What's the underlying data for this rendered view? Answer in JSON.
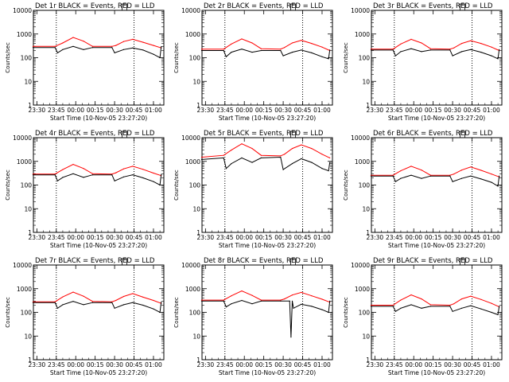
{
  "colors": {
    "events": "#000000",
    "lld": "#ff0000",
    "background": "#ffffff",
    "axis": "#000000"
  },
  "chart_data": [
    {
      "type": "line",
      "title": "Det 1r BLACK = Events, RED = LLD",
      "xlabel": "Start Time (10-Nov-05 23:27:20)",
      "ylabel": "Counts/sec",
      "yscale": "log",
      "ylim": [
        1,
        10000
      ],
      "xticks": [
        "23:30",
        "23:45",
        "00:00",
        "00:15",
        "00:30",
        "00:45",
        "01:00"
      ],
      "xlim": [
        "23:27:20",
        "01:08:00"
      ],
      "vlines": [
        "23:45",
        "00:45"
      ],
      "series": [
        {
          "name": "LLD",
          "color": "#ff0000",
          "x": [
            "23:27",
            "23:44",
            "23:50",
            "23:58",
            "00:06",
            "00:13",
            "00:28",
            "00:31",
            "00:37",
            "00:44",
            "00:52",
            "01:00",
            "01:06"
          ],
          "y": [
            300,
            300,
            420,
            720,
            500,
            300,
            300,
            330,
            480,
            600,
            450,
            330,
            260
          ]
        },
        {
          "name": "Events",
          "color": "#000000",
          "x": [
            "23:27",
            "23:44",
            "23:46",
            "23:50",
            "23:58",
            "00:06",
            "00:13",
            "00:28",
            "00:30",
            "00:37",
            "00:44",
            "00:52",
            "01:00",
            "01:05",
            "01:06"
          ],
          "y": [
            270,
            270,
            160,
            220,
            300,
            220,
            270,
            270,
            160,
            220,
            260,
            210,
            140,
            100,
            290
          ]
        }
      ]
    },
    {
      "type": "line",
      "title": "Det 2r BLACK = Events, RED = LLD",
      "xlabel": "Start Time (10-Nov-05 23:27:20)",
      "ylabel": "Counts/sec",
      "yscale": "log",
      "ylim": [
        1,
        10000
      ],
      "xticks": [
        "23:30",
        "23:45",
        "00:00",
        "00:15",
        "00:30",
        "00:45",
        "01:00"
      ],
      "xlim": [
        "23:27:20",
        "01:08:00"
      ],
      "vlines": [
        "23:45",
        "00:45"
      ],
      "series": [
        {
          "name": "LLD",
          "color": "#ff0000",
          "x": [
            "23:27",
            "23:44",
            "23:50",
            "23:58",
            "00:06",
            "00:13",
            "00:28",
            "00:31",
            "00:37",
            "00:44",
            "00:52",
            "01:00",
            "01:06"
          ],
          "y": [
            230,
            230,
            380,
            620,
            420,
            240,
            230,
            270,
            420,
            540,
            400,
            280,
            200
          ]
        },
        {
          "name": "Events",
          "color": "#000000",
          "x": [
            "23:27",
            "23:44",
            "23:46",
            "23:50",
            "23:58",
            "00:06",
            "00:13",
            "00:28",
            "00:30",
            "00:37",
            "00:44",
            "00:52",
            "01:00",
            "01:05",
            "01:06"
          ],
          "y": [
            200,
            200,
            110,
            170,
            230,
            170,
            200,
            200,
            120,
            170,
            210,
            160,
            110,
            90,
            210
          ]
        }
      ]
    },
    {
      "type": "line",
      "title": "Det 3r BLACK = Events, RED = LLD",
      "xlabel": "Start Time (10-Nov-05 23:27:20)",
      "ylabel": "Counts/sec",
      "yscale": "log",
      "ylim": [
        1,
        10000
      ],
      "xticks": [
        "23:30",
        "23:45",
        "00:00",
        "00:15",
        "00:30",
        "00:45",
        "01:00"
      ],
      "xlim": [
        "23:27:20",
        "01:08:00"
      ],
      "vlines": [
        "23:45",
        "00:45"
      ],
      "series": [
        {
          "name": "LLD",
          "color": "#ff0000",
          "x": [
            "23:27",
            "23:44",
            "23:50",
            "23:58",
            "00:06",
            "00:13",
            "00:28",
            "00:31",
            "00:37",
            "00:44",
            "00:52",
            "01:00",
            "01:06"
          ],
          "y": [
            230,
            230,
            380,
            600,
            420,
            240,
            230,
            260,
            400,
            520,
            400,
            280,
            200
          ]
        },
        {
          "name": "Events",
          "color": "#000000",
          "x": [
            "23:27",
            "23:44",
            "23:46",
            "23:50",
            "23:58",
            "00:06",
            "00:13",
            "00:28",
            "00:30",
            "00:37",
            "00:44",
            "00:52",
            "01:00",
            "01:05",
            "01:06"
          ],
          "y": [
            210,
            210,
            120,
            180,
            240,
            180,
            210,
            210,
            120,
            180,
            220,
            170,
            120,
            90,
            220
          ]
        }
      ]
    },
    {
      "type": "line",
      "title": "Det 4r BLACK = Events, RED = LLD",
      "xlabel": "Start Time (10-Nov-05 23:27:20)",
      "ylabel": "Counts/sec",
      "yscale": "log",
      "ylim": [
        1,
        10000
      ],
      "xticks": [
        "23:30",
        "23:45",
        "00:00",
        "00:15",
        "00:30",
        "00:45",
        "01:00"
      ],
      "xlim": [
        "23:27:20",
        "01:08:00"
      ],
      "vlines": [
        "23:45",
        "00:45"
      ],
      "series": [
        {
          "name": "LLD",
          "color": "#ff0000",
          "x": [
            "23:27",
            "23:44",
            "23:50",
            "23:58",
            "00:06",
            "00:13",
            "00:28",
            "00:31",
            "00:37",
            "00:44",
            "00:52",
            "01:00",
            "01:06"
          ],
          "y": [
            290,
            290,
            450,
            750,
            500,
            300,
            290,
            330,
            480,
            620,
            460,
            320,
            250
          ]
        },
        {
          "name": "Events",
          "color": "#000000",
          "x": [
            "23:27",
            "23:44",
            "23:46",
            "23:50",
            "23:58",
            "00:06",
            "00:13",
            "00:28",
            "00:30",
            "00:37",
            "00:44",
            "00:52",
            "01:00",
            "01:05",
            "01:06"
          ],
          "y": [
            270,
            270,
            150,
            210,
            300,
            210,
            270,
            270,
            150,
            220,
            270,
            200,
            140,
            100,
            280
          ]
        }
      ]
    },
    {
      "type": "line",
      "title": "Det 5r BLACK = Events, RED = LLD",
      "xlabel": "Start Time (10-Nov-05 23:27:20)",
      "ylabel": "Counts/sec",
      "yscale": "log",
      "ylim": [
        1,
        10000
      ],
      "xticks": [
        "23:30",
        "23:45",
        "00:00",
        "00:15",
        "00:30",
        "00:45",
        "01:00"
      ],
      "xlim": [
        "23:27:20",
        "01:08:00"
      ],
      "vlines": [
        "23:45",
        "00:45"
      ],
      "series": [
        {
          "name": "LLD",
          "color": "#ff0000",
          "x": [
            "23:27",
            "23:44",
            "23:50",
            "23:58",
            "00:06",
            "00:13",
            "00:28",
            "00:31",
            "00:37",
            "00:44",
            "00:52",
            "01:00",
            "01:06"
          ],
          "y": [
            1500,
            1800,
            3000,
            5500,
            3500,
            1800,
            1700,
            2000,
            3500,
            5000,
            3500,
            2000,
            1400
          ]
        },
        {
          "name": "Events",
          "color": "#000000",
          "x": [
            "23:27",
            "23:44",
            "23:46",
            "23:50",
            "23:58",
            "00:06",
            "00:13",
            "00:28",
            "00:30",
            "00:37",
            "00:44",
            "00:52",
            "01:00",
            "01:05",
            "01:06"
          ],
          "y": [
            1200,
            1400,
            500,
            800,
            1400,
            900,
            1400,
            1500,
            450,
            800,
            1300,
            900,
            500,
            400,
            900
          ]
        }
      ]
    },
    {
      "type": "line",
      "title": "Det 6r BLACK = Events, RED = LLD",
      "xlabel": "Start Time (10-Nov-05 23:27:20)",
      "ylabel": "Counts/sec",
      "yscale": "log",
      "ylim": [
        1,
        10000
      ],
      "xticks": [
        "23:30",
        "23:45",
        "00:00",
        "00:15",
        "00:30",
        "00:45",
        "01:00"
      ],
      "xlim": [
        "23:27:20",
        "01:08:00"
      ],
      "vlines": [
        "23:45",
        "00:45"
      ],
      "series": [
        {
          "name": "LLD",
          "color": "#ff0000",
          "x": [
            "23:27",
            "23:44",
            "23:50",
            "23:58",
            "00:06",
            "00:13",
            "00:28",
            "00:31",
            "00:37",
            "00:44",
            "00:52",
            "01:00",
            "01:06"
          ],
          "y": [
            260,
            260,
            400,
            620,
            430,
            260,
            260,
            290,
            430,
            580,
            420,
            290,
            220
          ]
        },
        {
          "name": "Events",
          "color": "#000000",
          "x": [
            "23:27",
            "23:44",
            "23:46",
            "23:50",
            "23:58",
            "00:06",
            "00:13",
            "00:28",
            "00:30",
            "00:37",
            "00:44",
            "00:52",
            "01:00",
            "01:05",
            "01:06"
          ],
          "y": [
            240,
            240,
            140,
            190,
            260,
            190,
            240,
            240,
            140,
            190,
            240,
            180,
            130,
            90,
            240
          ]
        }
      ]
    },
    {
      "type": "line",
      "title": "Det 7r BLACK = Events, RED = LLD",
      "xlabel": "Start Time (10-Nov-05 23:27:20)",
      "ylabel": "Counts/sec",
      "yscale": "log",
      "ylim": [
        1,
        10000
      ],
      "xticks": [
        "23:30",
        "23:45",
        "00:00",
        "00:15",
        "00:30",
        "00:45",
        "01:00"
      ],
      "xlim": [
        "23:27:20",
        "01:08:00"
      ],
      "vlines": [
        "23:45",
        "00:45"
      ],
      "series": [
        {
          "name": "LLD",
          "color": "#ff0000",
          "x": [
            "23:27",
            "23:44",
            "23:50",
            "23:58",
            "00:06",
            "00:13",
            "00:28",
            "00:31",
            "00:37",
            "00:44",
            "00:52",
            "01:00",
            "01:06"
          ],
          "y": [
            280,
            280,
            450,
            720,
            480,
            290,
            280,
            320,
            470,
            620,
            440,
            320,
            240
          ]
        },
        {
          "name": "Events",
          "color": "#000000",
          "x": [
            "23:27",
            "23:44",
            "23:46",
            "23:50",
            "23:58",
            "00:06",
            "00:13",
            "00:28",
            "00:30",
            "00:37",
            "00:44",
            "00:52",
            "01:00",
            "01:05",
            "01:06"
          ],
          "y": [
            260,
            260,
            150,
            210,
            290,
            210,
            260,
            260,
            150,
            210,
            260,
            200,
            140,
            100,
            270
          ]
        }
      ]
    },
    {
      "type": "line",
      "title": "Det 8r BLACK = Events, RED = LLD",
      "xlabel": "Start Time (10-Nov-05 23:27:20)",
      "ylabel": "Counts/sec",
      "yscale": "log",
      "ylim": [
        1,
        10000
      ],
      "xticks": [
        "23:30",
        "23:45",
        "00:00",
        "00:15",
        "00:30",
        "00:45",
        "01:00"
      ],
      "xlim": [
        "23:27:20",
        "01:08:00"
      ],
      "vlines": [
        "23:45",
        "00:45"
      ],
      "series": [
        {
          "name": "LLD",
          "color": "#ff0000",
          "x": [
            "23:27",
            "23:44",
            "23:50",
            "23:58",
            "00:06",
            "00:13",
            "00:28",
            "00:31",
            "00:37",
            "00:44",
            "00:52",
            "01:00",
            "01:06"
          ],
          "y": [
            330,
            330,
            500,
            800,
            520,
            330,
            330,
            370,
            540,
            700,
            500,
            360,
            270
          ]
        },
        {
          "name": "Events",
          "color": "#000000",
          "x": [
            "23:27",
            "23:44",
            "23:46",
            "23:50",
            "23:58",
            "00:06",
            "00:13",
            "00:28",
            "00:35",
            "00:36",
            "00:37",
            "00:38",
            "00:44",
            "00:52",
            "01:00",
            "01:05",
            "01:06"
          ],
          "y": [
            300,
            300,
            170,
            230,
            320,
            230,
            300,
            300,
            300,
            9,
            300,
            150,
            220,
            180,
            130,
            100,
            300
          ]
        }
      ]
    },
    {
      "type": "line",
      "title": "Det 9r BLACK = Events, RED = LLD",
      "xlabel": "Start Time (10-Nov-05 23:27:20)",
      "ylabel": "Counts/sec",
      "yscale": "log",
      "ylim": [
        1,
        10000
      ],
      "xticks": [
        "23:30",
        "23:45",
        "00:00",
        "00:15",
        "00:30",
        "00:45",
        "01:00"
      ],
      "xlim": [
        "23:27:20",
        "01:08:00"
      ],
      "vlines": [
        "23:45",
        "00:45"
      ],
      "series": [
        {
          "name": "LLD",
          "color": "#ff0000",
          "x": [
            "23:27",
            "23:44",
            "23:50",
            "23:58",
            "00:06",
            "00:13",
            "00:28",
            "00:31",
            "00:37",
            "00:44",
            "00:52",
            "01:00",
            "01:06"
          ],
          "y": [
            200,
            200,
            330,
            550,
            370,
            210,
            200,
            230,
            370,
            480,
            350,
            240,
            170
          ]
        },
        {
          "name": "Events",
          "color": "#000000",
          "x": [
            "23:27",
            "23:44",
            "23:46",
            "23:50",
            "23:58",
            "00:06",
            "00:13",
            "00:28",
            "00:30",
            "00:37",
            "00:44",
            "00:52",
            "01:00",
            "01:05",
            "01:06"
          ],
          "y": [
            180,
            180,
            110,
            150,
            210,
            150,
            180,
            180,
            110,
            150,
            190,
            140,
            100,
            80,
            180
          ]
        }
      ]
    }
  ]
}
